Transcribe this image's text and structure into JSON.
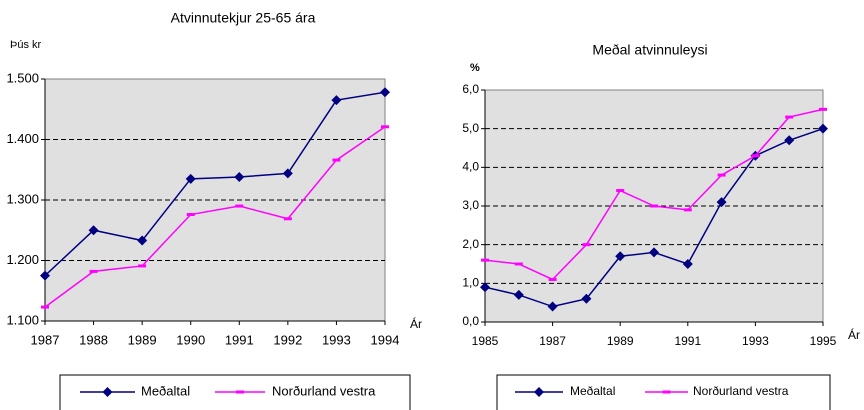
{
  "chart_data": [
    {
      "type": "line",
      "title": "Atvinnutekjur 25-65 ára",
      "ylabel": "Þús kr",
      "xlabel": "Ár",
      "x": [
        1987,
        1988,
        1989,
        1990,
        1991,
        1992,
        1993,
        1994
      ],
      "xlim": [
        1987,
        1994
      ],
      "xticks": [
        1987,
        1988,
        1989,
        1990,
        1991,
        1992,
        1993,
        1994
      ],
      "ylim": [
        1100,
        1500
      ],
      "yticks": [
        {
          "value": 1100,
          "label": "1.100"
        },
        {
          "value": 1200,
          "label": "1.200"
        },
        {
          "value": 1300,
          "label": "1.300"
        },
        {
          "value": 1400,
          "label": "1.400"
        },
        {
          "value": 1500,
          "label": "1.500"
        }
      ],
      "grid": true,
      "series": [
        {
          "name": "Meðaltal",
          "color": "#000080",
          "marker": "diamond",
          "values": [
            1175,
            1250,
            1233,
            1335,
            1338,
            1344,
            1465,
            1478
          ]
        },
        {
          "name": "Norðurland vestra",
          "color": "#ff00ff",
          "marker": "dash",
          "values": [
            1123,
            1182,
            1191,
            1276,
            1290,
            1269,
            1366,
            1421
          ]
        }
      ]
    },
    {
      "type": "line",
      "title": "Meðal atvinnuleysi",
      "ylabel": "%",
      "xlabel": "Ár",
      "x": [
        1985,
        1986,
        1987,
        1988,
        1989,
        1990,
        1991,
        1992,
        1993,
        1994,
        1995
      ],
      "xlim": [
        1985,
        1995
      ],
      "xticks": [
        1985,
        1987,
        1989,
        1991,
        1993,
        1995
      ],
      "ylim": [
        0,
        6
      ],
      "yticks": [
        {
          "value": 0,
          "label": "0,0"
        },
        {
          "value": 1,
          "label": "1,0"
        },
        {
          "value": 2,
          "label": "2,0"
        },
        {
          "value": 3,
          "label": "3,0"
        },
        {
          "value": 4,
          "label": "4,0"
        },
        {
          "value": 5,
          "label": "5,0"
        },
        {
          "value": 6,
          "label": "6,0"
        }
      ],
      "grid": true,
      "series": [
        {
          "name": "Meðaltal",
          "color": "#000080",
          "marker": "diamond",
          "values": [
            0.9,
            0.7,
            0.4,
            0.6,
            1.7,
            1.8,
            1.5,
            3.1,
            4.3,
            4.7,
            5.0
          ]
        },
        {
          "name": "Norðurland vestra",
          "color": "#ff00ff",
          "marker": "dash",
          "values": [
            1.6,
            1.5,
            1.1,
            2.0,
            3.4,
            3.0,
            2.9,
            3.8,
            4.3,
            5.3,
            5.5
          ]
        }
      ]
    }
  ]
}
